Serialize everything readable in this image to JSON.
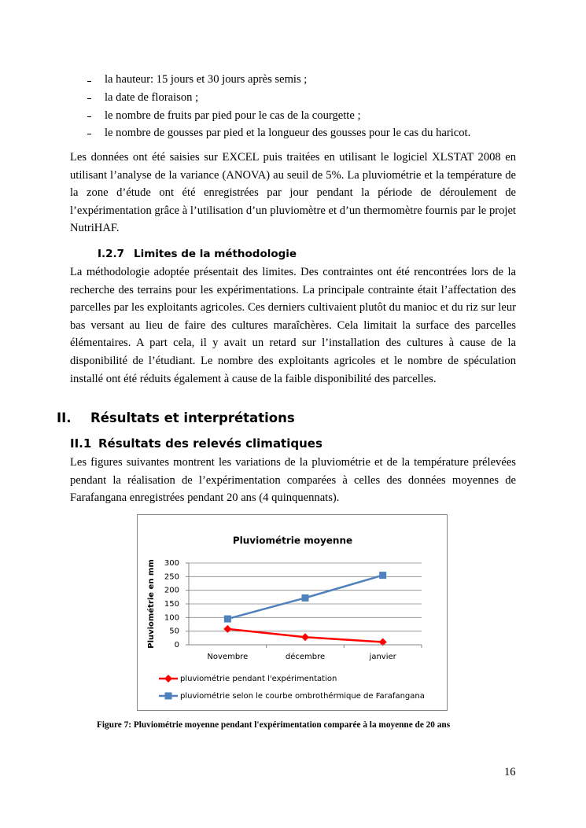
{
  "bullets": [
    "la hauteur: 15 jours et 30 jours après semis ;",
    "la date de floraison ;",
    "le nombre de fruits par pied pour le cas de la courgette ;",
    "le nombre de gousses par pied et la longueur des gousses pour le cas du haricot."
  ],
  "paragraph_1": "Les données ont été saisies sur EXCEL puis traitées en utilisant le logiciel XLSTAT 2008 en utilisant l’analyse de la variance (ANOVA) au seuil de 5%. La pluviométrie et la température de la zone d’étude ont été enregistrées par jour pendant la période de déroulement de l’expérimentation grâce à l’utilisation d’un pluviomètre et d’un thermomètre fournis par le projet NutriHAF.",
  "heading_1": {
    "number": "I.2.7",
    "title": "Limites de la méthodologie"
  },
  "paragraph_2": "La méthodologie adoptée présentait des limites. Des contraintes ont été rencontrées lors de la recherche des terrains pour les expérimentations. La principale contrainte était l’affectation des parcelles  par les exploitants agricoles. Ces derniers cultivaient plutôt du manioc et du riz sur leur bas versant au lieu de faire des cultures maraîchères. Cela limitait la surface des parcelles élémentaires. A part cela, il y avait un retard sur l’installation des cultures à cause de la disponibilité de l’étudiant. Le nombre des exploitants agricoles et le nombre de spéculation installé ont été réduits également à cause de la faible disponibilité des parcelles.",
  "heading_2": {
    "number": "II.",
    "title": "Résultats et interprétations"
  },
  "heading_3": {
    "number": "II.1",
    "title": "Résultats des relevés climatiques"
  },
  "paragraph_3": "Les figures suivantes montrent les variations de la pluviométrie et de la température prélevées pendant la réalisation de l’expérimentation comparées à celles des données moyennes de Farafangana enregistrées pendant 20 ans (4 quinquennats).",
  "chart_data": {
    "type": "line",
    "title": "Pluviométrie moyenne",
    "y_label": "Pluviométrie en mm",
    "categories": [
      "Novembre",
      "décembre",
      "janvier"
    ],
    "series": [
      {
        "name": "pluviométrie pendant l'expérimentation",
        "color": "#ff0000",
        "marker": "diamond",
        "values": [
          58,
          28,
          10
        ]
      },
      {
        "name": "pluviométrie selon le courbe ombrothérmique de Farafangana",
        "color": "#4f81bd",
        "marker": "square",
        "values": [
          95,
          172,
          255
        ]
      }
    ],
    "ylim": [
      0,
      300
    ],
    "yticks": [
      0,
      50,
      100,
      150,
      200,
      250,
      300
    ],
    "grid": true,
    "legend": "bottom"
  },
  "caption": "Figure 7: Pluviométrie moyenne pendant l'expérimentation comparée à la moyenne de 20 ans",
  "page_number": "16"
}
